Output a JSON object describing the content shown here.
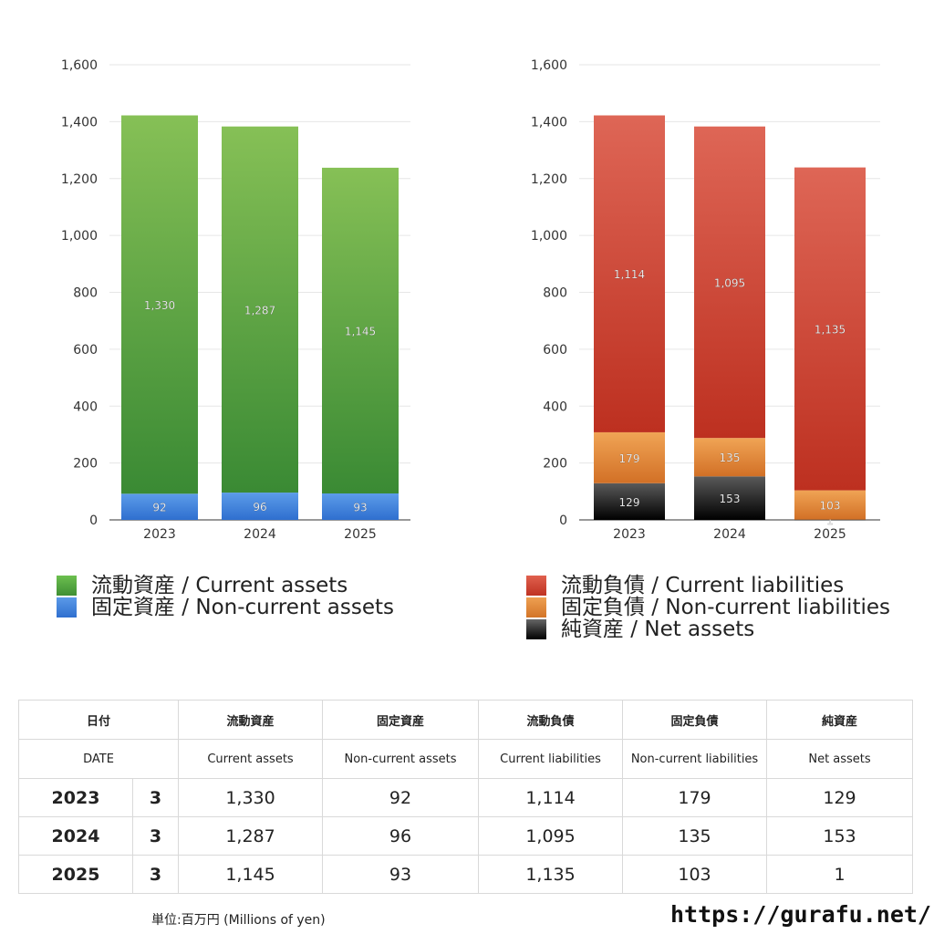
{
  "chart_data": [
    {
      "type": "bar",
      "stacked": true,
      "categories": [
        "2023",
        "2024",
        "2025"
      ],
      "ylim": [
        0,
        1600
      ],
      "yticks": [
        "0",
        "200",
        "400",
        "600",
        "800",
        "1,000",
        "1,200",
        "1,400",
        "1,600"
      ],
      "grid": true,
      "legend": "bottom",
      "series": [
        {
          "name": "固定資産 / Non-current assets",
          "values": [
            92,
            96,
            93
          ],
          "labels": [
            "92",
            "96",
            "93"
          ],
          "color": "#3e7fdc"
        },
        {
          "name": "流動資産 / Current assets",
          "values": [
            1330,
            1287,
            1145
          ],
          "labels": [
            "1,330",
            "1,287",
            "1,145"
          ],
          "color": "#5aa845"
        }
      ]
    },
    {
      "type": "bar",
      "stacked": true,
      "categories": [
        "2023",
        "2024",
        "2025"
      ],
      "ylim": [
        0,
        1600
      ],
      "yticks": [
        "0",
        "200",
        "400",
        "600",
        "800",
        "1,000",
        "1,200",
        "1,400",
        "1,600"
      ],
      "grid": true,
      "legend": "bottom",
      "series": [
        {
          "name": "純資産 / Net assets",
          "values": [
            129,
            153,
            1
          ],
          "labels": [
            "129",
            "153",
            "1"
          ],
          "color": "#222222"
        },
        {
          "name": "固定負債 / Non-current liabilities",
          "values": [
            179,
            135,
            103
          ],
          "labels": [
            "179",
            "135",
            "103"
          ],
          "color": "#e08a3a"
        },
        {
          "name": "流動負債 / Current liabilities",
          "values": [
            1114,
            1095,
            1135
          ],
          "labels": [
            "1,114",
            "1,095",
            "1,135"
          ],
          "color": "#cf4533"
        }
      ]
    }
  ],
  "legends": {
    "assets": [
      {
        "label": "流動資産 / Current assets",
        "color": "#4f9e3e"
      },
      {
        "label": "固定資産 / Non-current assets",
        "color": "#3e7fdc"
      }
    ],
    "liabilities": [
      {
        "label": "流動負債 / Current liabilities",
        "color": "#d34a36"
      },
      {
        "label": "固定負債 / Non-current liabilities",
        "color": "#e08a3a"
      },
      {
        "label": "純資産 / Net assets",
        "color": "#222222"
      }
    ]
  },
  "table": {
    "header_jp": [
      "日付",
      "流動資産",
      "固定資産",
      "流動負債",
      "固定負債",
      "純資産"
    ],
    "header_en": [
      "DATE",
      "Current assets",
      "Non-current assets",
      "Current liabilities",
      "Non-current liabilities",
      "Net assets"
    ],
    "rows": [
      {
        "year": "2023",
        "month": "3",
        "values": [
          "1,330",
          "92",
          "1,114",
          "179",
          "129"
        ]
      },
      {
        "year": "2024",
        "month": "3",
        "values": [
          "1,287",
          "96",
          "1,095",
          "135",
          "153"
        ]
      },
      {
        "year": "2025",
        "month": "3",
        "values": [
          "1,145",
          "93",
          "1,135",
          "103",
          "1"
        ]
      }
    ]
  },
  "footer": {
    "unit": "単位:百万円 (Millions of yen)",
    "site": "https://gurafu.net/"
  }
}
